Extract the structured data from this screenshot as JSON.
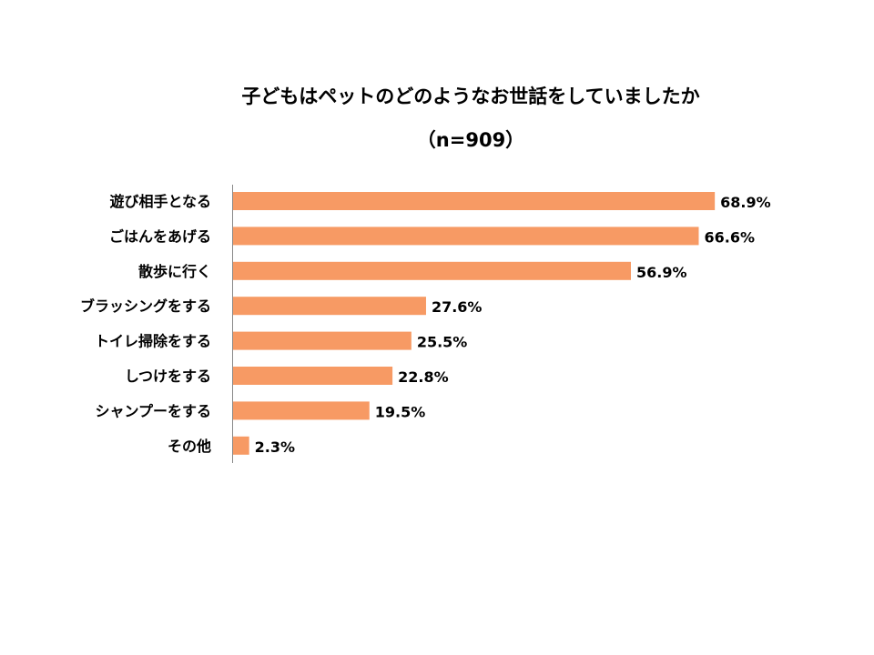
{
  "chart_data": {
    "type": "bar",
    "orientation": "horizontal",
    "title": "子どもはペットのどのようなお世話をしていましたか",
    "subtitle": "（n=909）",
    "categories": [
      "遊び相手となる",
      "ごはんをあげる",
      "散歩に行く",
      "ブラッシングをする",
      "トイレ掃除をする",
      "しつけをする",
      "シャンプーをする",
      "その他"
    ],
    "values": [
      68.9,
      66.6,
      56.9,
      27.6,
      25.5,
      22.8,
      19.5,
      2.3
    ],
    "value_labels": [
      "68.9%",
      "66.6%",
      "56.9%",
      "27.6%",
      "25.5%",
      "22.8%",
      "19.5%",
      "2.3%"
    ],
    "xlabel": "",
    "ylabel": "",
    "xlim": [
      0,
      100
    ],
    "grid": false,
    "bar_color": "#F79A64"
  }
}
